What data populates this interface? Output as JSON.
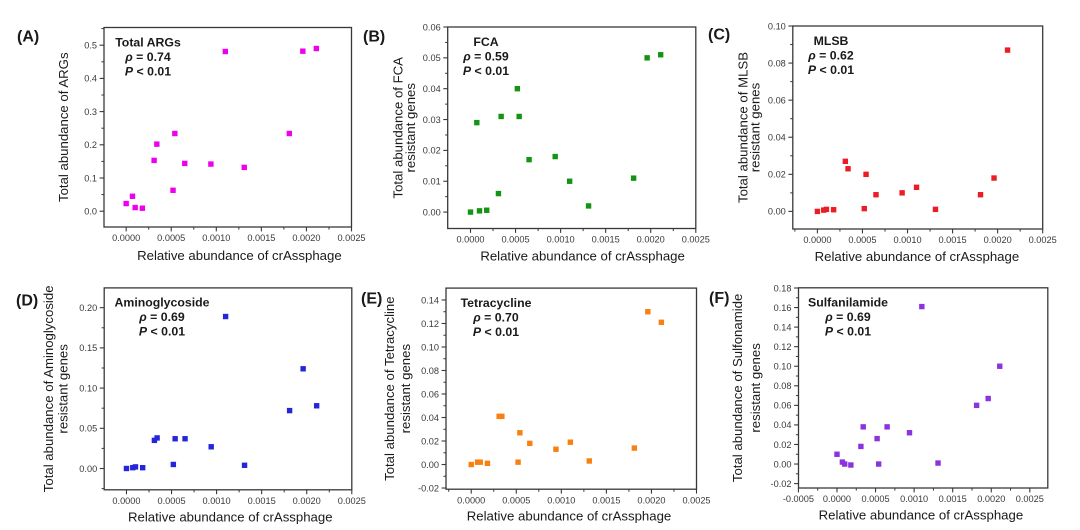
{
  "figure": {
    "background": "#ffffff",
    "text_color": "#1a1a1a",
    "tick_label_color": "#3a3a3a",
    "axis_color": "#383838",
    "description": "Six scatter panels correlating relative abundance of crAssphage with total abundance of antibiotic resistance gene classes"
  },
  "chart_data": [
    {
      "type": "scatter",
      "panel_label": "(A)",
      "title": "Total ARGs",
      "stats": [
        {
          "sym": "ρ",
          "rest": " = 0.74"
        },
        {
          "sym": "P",
          "rest": " < 0.01"
        }
      ],
      "xlabel": "Relative abundance of crAssphage",
      "ylabel_lines": [
        "Total abundance of ARGs"
      ],
      "marker_color": "#EE00EE",
      "xlim": [
        -0.000246,
        0.0025
      ],
      "ylim": [
        -0.0476,
        0.5533
      ],
      "xticks": [
        0.0,
        0.0005,
        0.001,
        0.0015,
        0.002,
        0.0025
      ],
      "xtick_labels": [
        "0.0000",
        "0.0005",
        "0.0010",
        "0.0015",
        "0.0020",
        "0.0025"
      ],
      "x_minor_step": 0.00025,
      "yticks": [
        0.0,
        0.1,
        0.2,
        0.3,
        0.4,
        0.5
      ],
      "ytick_labels": [
        "0.0",
        "0.1",
        "0.2",
        "0.3",
        "0.4",
        "0.5"
      ],
      "y_minor_step": 0.05,
      "x": [
        0.0,
        7e-05,
        0.0001,
        0.00018,
        0.00031,
        0.00034,
        0.00052,
        0.00054,
        0.00065,
        0.00094,
        0.0011,
        0.00131,
        0.00181,
        0.00196,
        0.00211
      ],
      "y": [
        0.023,
        0.045,
        0.011,
        0.009,
        0.153,
        0.202,
        0.063,
        0.234,
        0.144,
        0.142,
        0.481,
        0.132,
        0.234,
        0.482,
        0.49
      ]
    },
    {
      "type": "scatter",
      "panel_label": "(B)",
      "title": "FCA",
      "stats": [
        {
          "sym": "ρ",
          "rest": " = 0.59"
        },
        {
          "sym": "P",
          "rest": " < 0.01"
        }
      ],
      "xlabel": "Relative abundance of crAssphage",
      "ylabel_lines": [
        "Total abundance of FCA",
        "resistant genes"
      ],
      "marker_color": "#149414",
      "xlim": [
        -0.000253,
        0.0025
      ],
      "ylim": [
        -0.00532,
        0.06
      ],
      "xticks": [
        0.0,
        0.0005,
        0.001,
        0.0015,
        0.002,
        0.0025
      ],
      "xtick_labels": [
        "0.0000",
        "0.0005",
        "0.0010",
        "0.0015",
        "0.0020",
        "0.0025"
      ],
      "x_minor_step": 0.00025,
      "yticks": [
        0.0,
        0.01,
        0.02,
        0.03,
        0.04,
        0.05,
        0.06
      ],
      "ytick_labels": [
        "0.00",
        "0.01",
        "0.02",
        "0.03",
        "0.04",
        "0.05",
        "0.06"
      ],
      "y_minor_step": 0.005,
      "x": [
        0.0,
        7e-05,
        0.0001,
        0.00018,
        0.00031,
        0.00034,
        0.00052,
        0.00054,
        0.00065,
        0.00094,
        0.0011,
        0.00131,
        0.00181,
        0.00196,
        0.00211
      ],
      "y": [
        0.0,
        0.029,
        0.0004,
        0.0006,
        0.006,
        0.031,
        0.04,
        0.031,
        0.017,
        0.018,
        0.01,
        0.002,
        0.011,
        0.05,
        0.051
      ]
    },
    {
      "type": "scatter",
      "panel_label": "(C)",
      "title": "MLSB",
      "stats": [
        {
          "sym": "ρ",
          "rest": " = 0.62"
        },
        {
          "sym": "P",
          "rest": " < 0.01"
        }
      ],
      "xlabel": "Relative abundance of crAssphage",
      "ylabel_lines": [
        "Total abundance of MLSB",
        "resistant genes"
      ],
      "marker_color": "#EC1C24",
      "xlim": [
        -0.000273,
        0.0025
      ],
      "ylim": [
        -0.00949,
        0.1
      ],
      "xticks": [
        0.0,
        0.0005,
        0.001,
        0.0015,
        0.002,
        0.0025
      ],
      "xtick_labels": [
        "0.0000",
        "0.0005",
        "0.0010",
        "0.0015",
        "0.0020",
        "0.0025"
      ],
      "x_minor_step": 0.00025,
      "yticks": [
        0.0,
        0.02,
        0.04,
        0.06,
        0.08,
        0.1
      ],
      "ytick_labels": [
        "0.00",
        "0.02",
        "0.04",
        "0.06",
        "0.08",
        "0.10"
      ],
      "y_minor_step": 0.01,
      "x": [
        0.0,
        7e-05,
        0.0001,
        0.00018,
        0.00031,
        0.00034,
        0.00052,
        0.00054,
        0.00065,
        0.00094,
        0.0011,
        0.00131,
        0.00181,
        0.00196,
        0.00211
      ],
      "y": [
        0.0,
        0.0007,
        0.0011,
        0.0009,
        0.027,
        0.023,
        0.0015,
        0.02,
        0.009,
        0.01,
        0.013,
        0.0011,
        0.009,
        0.018,
        0.087
      ]
    },
    {
      "type": "scatter",
      "panel_label": "(D)",
      "title": "Aminoglycoside",
      "stats": [
        {
          "sym": "ρ",
          "rest": " = 0.69"
        },
        {
          "sym": "P",
          "rest": " < 0.01"
        }
      ],
      "xlabel": "Relative abundance of crAssphage",
      "ylabel_lines": [
        "Total abundance of Aminoglycoside",
        "resistant genes"
      ],
      "marker_color": "#2525DC",
      "xlim": [
        -0.000247,
        0.0025
      ],
      "ylim": [
        -0.0265,
        0.2246
      ],
      "xticks": [
        0.0,
        0.0005,
        0.001,
        0.0015,
        0.002,
        0.0025
      ],
      "xtick_labels": [
        "0.0000",
        "0.0005",
        "0.0010",
        "0.0015",
        "0.0020",
        "0.0025"
      ],
      "x_minor_step": 0.00025,
      "yticks": [
        0.0,
        0.05,
        0.1,
        0.15,
        0.2
      ],
      "ytick_labels": [
        "0.00",
        "0.05",
        "0.10",
        "0.15",
        "0.20"
      ],
      "y_minor_step": 0.025,
      "x": [
        0.0,
        7e-05,
        0.0001,
        0.00018,
        0.00031,
        0.00034,
        0.00052,
        0.00054,
        0.00065,
        0.00094,
        0.0011,
        0.00131,
        0.00181,
        0.00196,
        0.00211
      ],
      "y": [
        0.0,
        0.001,
        0.002,
        0.001,
        0.035,
        0.038,
        0.005,
        0.037,
        0.037,
        0.027,
        0.189,
        0.004,
        0.072,
        0.124,
        0.078
      ]
    },
    {
      "type": "scatter",
      "panel_label": "(E)",
      "title": "Tetracycline",
      "stats": [
        {
          "sym": "ρ",
          "rest": " = 0.70"
        },
        {
          "sym": "P",
          "rest": " < 0.01"
        }
      ],
      "xlabel": "Relative abundance of crAssphage",
      "ylabel_lines": [
        "Total abundance of Tetracycline",
        "resistant genes"
      ],
      "marker_color": "#F88010",
      "xlim": [
        -0.00028,
        0.0025
      ],
      "ylim": [
        -0.021,
        0.1501
      ],
      "xticks": [
        0.0,
        0.0005,
        0.001,
        0.0015,
        0.002,
        0.0025
      ],
      "xtick_labels": [
        "0.0000",
        "0.0005",
        "0.0010",
        "0.0015",
        "0.0020",
        "0.0025"
      ],
      "x_minor_step": 0.00025,
      "yticks": [
        -0.02,
        0.0,
        0.02,
        0.04,
        0.06,
        0.08,
        0.1,
        0.12,
        0.14
      ],
      "ytick_labels": [
        "-0.02",
        "0.00",
        "0.02",
        "0.04",
        "0.06",
        "0.08",
        "0.10",
        "0.12",
        "0.14"
      ],
      "y_minor_step": 0.01,
      "x": [
        0.0,
        7e-05,
        0.0001,
        0.00018,
        0.00031,
        0.00034,
        0.00052,
        0.00054,
        0.00065,
        0.00094,
        0.0011,
        0.00131,
        0.00181,
        0.00196,
        0.00211
      ],
      "y": [
        0.0,
        0.002,
        0.002,
        0.001,
        0.041,
        0.041,
        0.002,
        0.027,
        0.018,
        0.013,
        0.019,
        0.003,
        0.014,
        0.13,
        0.121
      ]
    },
    {
      "type": "scatter",
      "panel_label": "(F)",
      "title": "Sulfanilamide",
      "stats": [
        {
          "sym": "ρ",
          "rest": " = 0.69"
        },
        {
          "sym": "P",
          "rest": " < 0.01"
        }
      ],
      "xlabel": "Relative abundance of crAssphage",
      "ylabel_lines": [
        "Total abundance of Sulfonamide",
        "resistant genes"
      ],
      "marker_color": "#8A33DE",
      "xlim": [
        -0.000499,
        0.002733
      ],
      "ylim": [
        -0.0245,
        0.1802
      ],
      "xticks": [
        -0.0005,
        0.0,
        0.0005,
        0.001,
        0.0015,
        0.002,
        0.0025
      ],
      "xtick_labels": [
        "-0.0005",
        "0.0000",
        "0.0005",
        "0.0010",
        "0.0015",
        "0.0020",
        "0.0025"
      ],
      "x_minor_step": 0.00025,
      "yticks": [
        -0.02,
        0.0,
        0.02,
        0.04,
        0.06,
        0.08,
        0.1,
        0.12,
        0.14,
        0.16,
        0.18
      ],
      "ytick_labels": [
        "-0.02",
        "0.00",
        "0.02",
        "0.04",
        "0.06",
        "0.08",
        "0.10",
        "0.12",
        "0.14",
        "0.16",
        "0.18"
      ],
      "y_minor_step": 0.01,
      "x": [
        0.0,
        7e-05,
        0.0001,
        0.00018,
        0.00031,
        0.00034,
        0.00052,
        0.00054,
        0.00065,
        0.00094,
        0.0011,
        0.00131,
        0.00181,
        0.00196,
        0.00211
      ],
      "y": [
        0.01,
        0.002,
        0.0,
        -0.001,
        0.018,
        0.038,
        0.026,
        0.0,
        0.038,
        0.032,
        0.161,
        0.001,
        0.06,
        0.067,
        0.1
      ]
    }
  ]
}
